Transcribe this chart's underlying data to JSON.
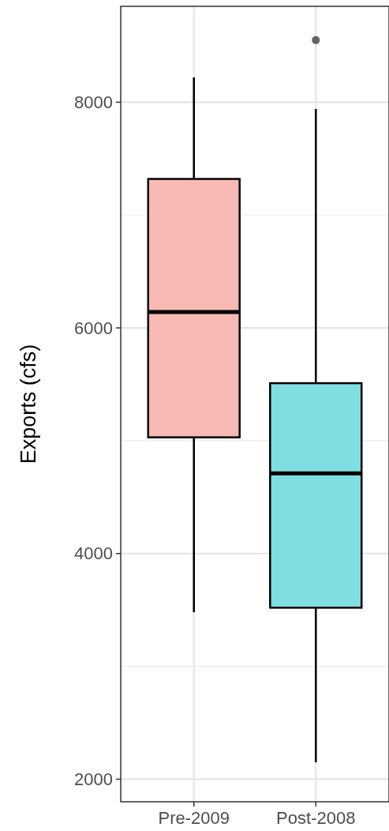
{
  "chart_data": {
    "type": "box",
    "ylabel": "Exports (cfs)",
    "categories": [
      "Pre-2009",
      "Post-2008"
    ],
    "colors": [
      "#f8b9b5",
      "#80dee1"
    ],
    "boxes": [
      {
        "low": 3480,
        "q1": 5030,
        "median": 6140,
        "q3": 7320,
        "high": 8220
      },
      {
        "low": 2150,
        "q1": 3520,
        "median": 4710,
        "q3": 5510,
        "high": 7940,
        "outliers": [
          8550
        ]
      }
    ],
    "ylim": [
      1800,
      8850
    ],
    "yticks": [
      2000,
      4000,
      6000,
      8000
    ],
    "grid": true
  }
}
